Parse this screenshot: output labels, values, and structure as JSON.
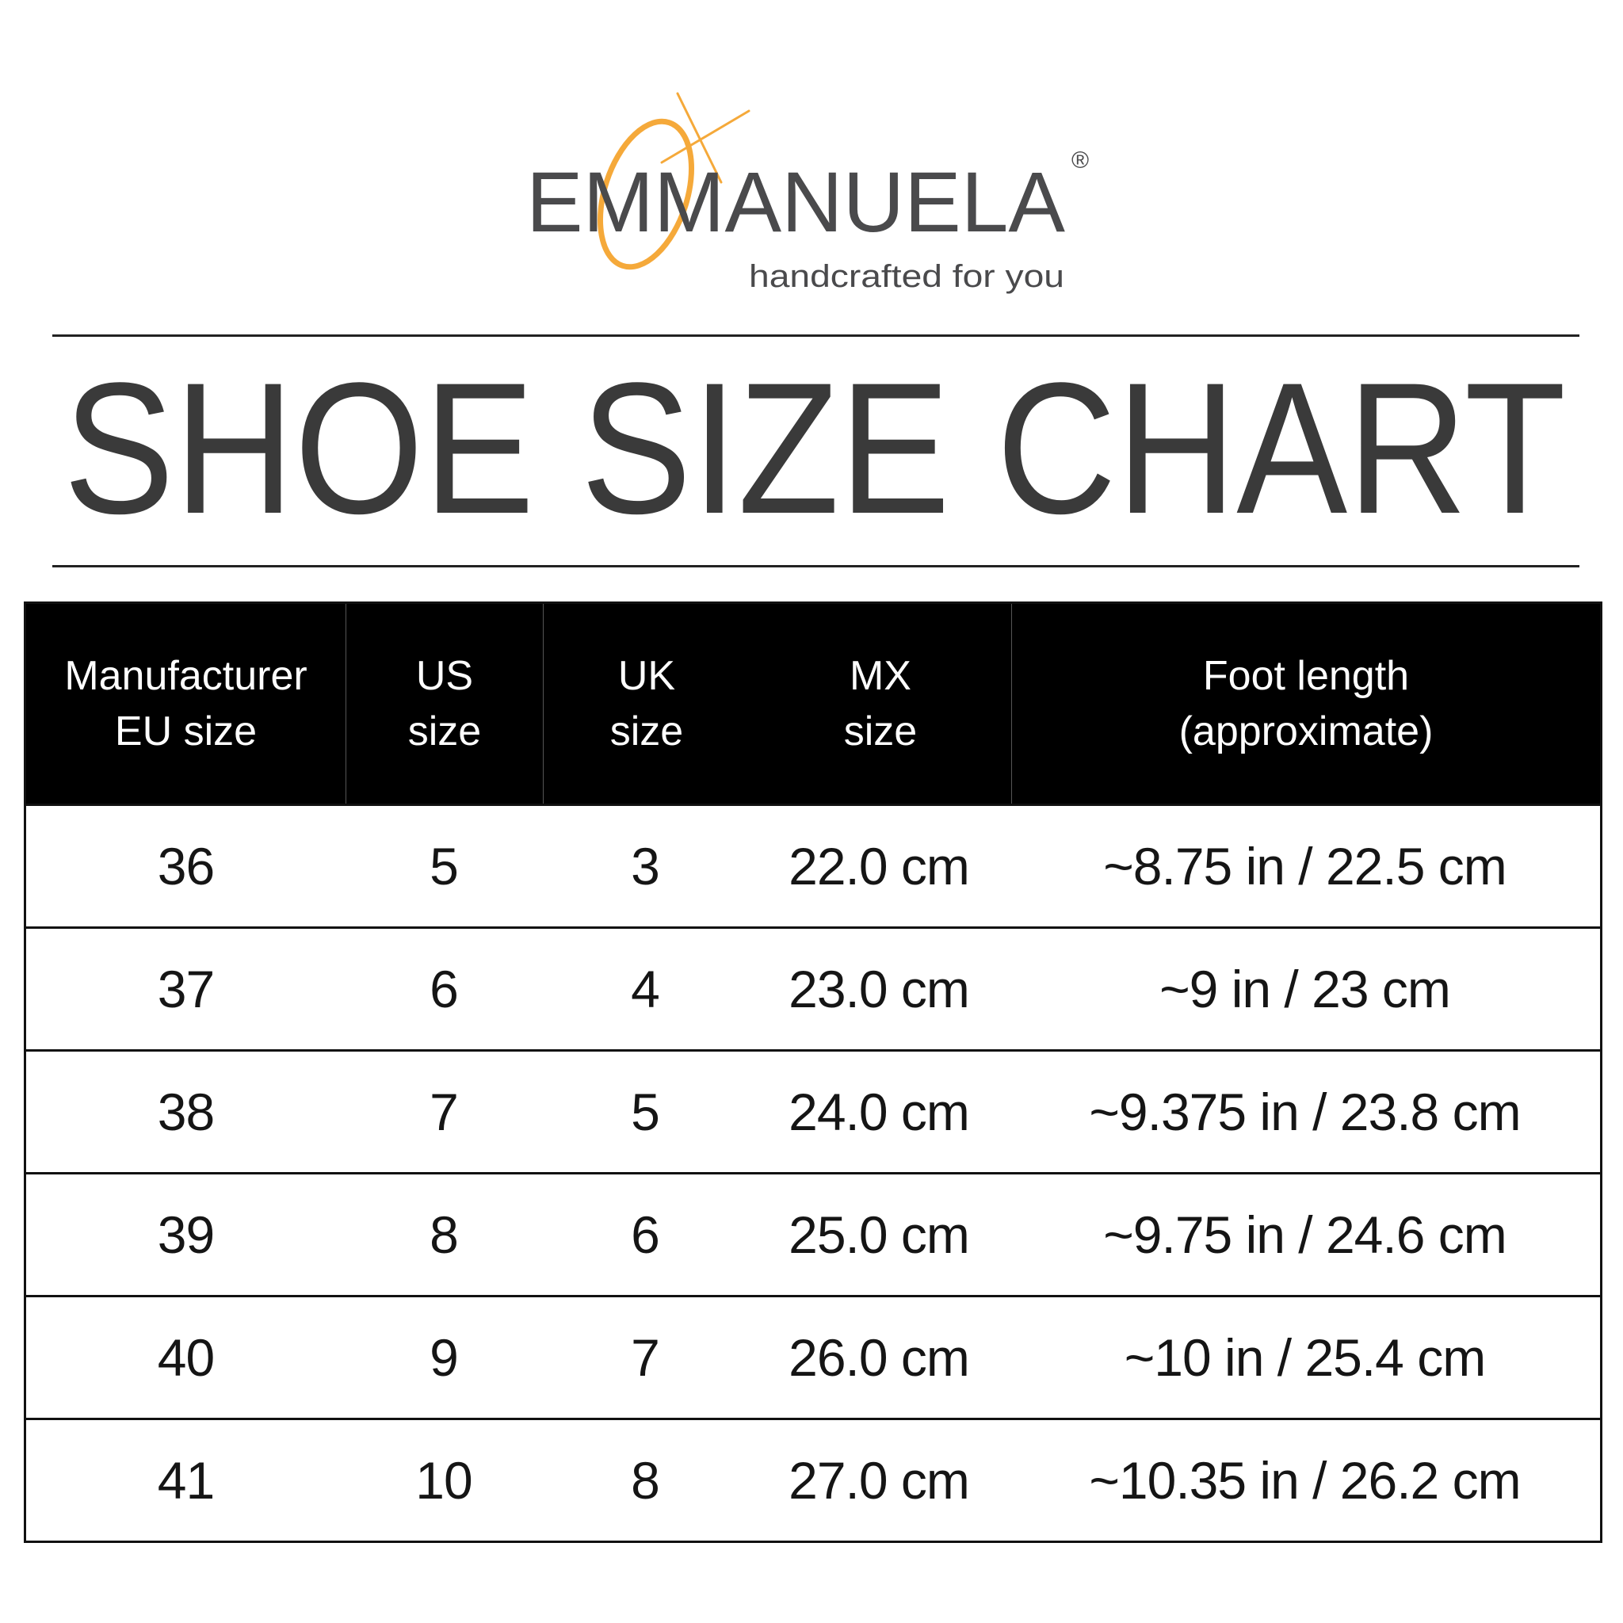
{
  "logo": {
    "brand": "EMMANUELA",
    "registered": "®",
    "tagline": "handcrafted for you",
    "accent_color": "#f5a93a",
    "text_color": "#4a4a4c"
  },
  "title": "SHOE SIZE CHART",
  "table": {
    "headers": [
      "Manufacturer\nEU size",
      "US\nsize",
      "UK\nsize",
      "MX\nsize",
      "Foot length\n(approximate)"
    ],
    "rows": [
      [
        "36",
        "5",
        "3",
        "22.0 cm",
        "~8.75 in / 22.5 cm"
      ],
      [
        "37",
        "6",
        "4",
        "23.0 cm",
        "~9 in / 23 cm"
      ],
      [
        "38",
        "7",
        "5",
        "24.0 cm",
        "~9.375 in / 23.8 cm"
      ],
      [
        "39",
        "8",
        "6",
        "25.0 cm",
        "~9.75 in / 24.6 cm"
      ],
      [
        "40",
        "9",
        "7",
        "26.0 cm",
        "~10 in / 25.4 cm"
      ],
      [
        "41",
        "10",
        "8",
        "27.0 cm",
        "~10.35 in / 26.2 cm"
      ]
    ]
  }
}
